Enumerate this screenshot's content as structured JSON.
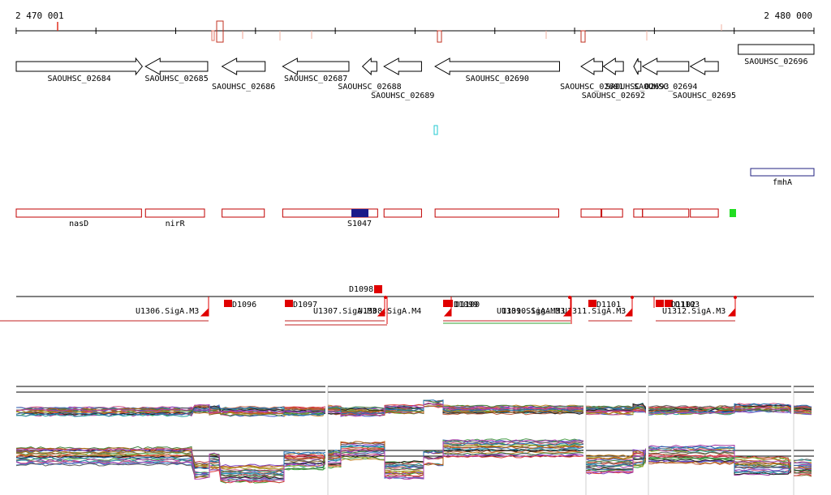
{
  "ruler": {
    "start_label": "2 470 001",
    "end_label": "2 480 000",
    "start": 2470001,
    "end": 2480000
  },
  "genes": [
    {
      "label": "SAOUHSC_02684",
      "strand": "+",
      "from": 2470001,
      "to": 2471581
    },
    {
      "label": "SAOUHSC_02685",
      "strand": "-",
      "from": 2471621,
      "to": 2472401
    },
    {
      "label": "SAOUHSC_02686",
      "strand": "-",
      "from": 2472581,
      "to": 2473121
    },
    {
      "label": "SAOUHSC_02687",
      "strand": "-",
      "from": 2473341,
      "to": 2474171
    },
    {
      "label": "SAOUHSC_02688",
      "strand": "-",
      "from": 2474341,
      "to": 2474521
    },
    {
      "label": "SAOUHSC_02689",
      "strand": "-",
      "from": 2474611,
      "to": 2475081
    },
    {
      "label": "SAOUHSC_02690",
      "strand": "-",
      "from": 2475251,
      "to": 2476811
    },
    {
      "label": "SAOUHSC_02691",
      "strand": "-",
      "from": 2477081,
      "to": 2477351
    },
    {
      "label": "SAOUHSC_02692",
      "strand": "-",
      "from": 2477361,
      "to": 2477611
    },
    {
      "label": "SAOUHSC_02693",
      "strand": "-",
      "from": 2477741,
      "to": 2477831
    },
    {
      "label": "SAOUHSC_02694",
      "strand": "-",
      "from": 2477851,
      "to": 2478431
    },
    {
      "label": "SAOUHSC_02695",
      "strand": "-",
      "from": 2478451,
      "to": 2478801
    },
    {
      "label": "SAOUHSC_02696",
      "strand": "+",
      "from": 2479051,
      "to": 2480000
    }
  ],
  "other_features": [
    {
      "label": "fmhA",
      "from": 2479051,
      "to": 2480000
    }
  ],
  "operons": [
    {
      "label": "nasD",
      "from": 2470001,
      "to": 2471571
    },
    {
      "label": "nirR",
      "from": 2471621,
      "to": 2472361
    },
    {
      "label": "",
      "from": 2472581,
      "to": 2473111
    },
    {
      "label": "",
      "from": 2473341,
      "to": 2474531
    },
    {
      "label": "",
      "from": 2474611,
      "to": 2475081
    },
    {
      "label": "",
      "from": 2475251,
      "to": 2476801
    },
    {
      "label": "",
      "from": 2477081,
      "to": 2477331
    },
    {
      "label": "",
      "from": 2477341,
      "to": 2477601
    },
    {
      "label": "",
      "from": 2477741,
      "to": 2477851
    },
    {
      "label": "",
      "from": 2477851,
      "to": 2478431
    },
    {
      "label": "",
      "from": 2478451,
      "to": 2478801
    }
  ],
  "srna": {
    "label": "S1047",
    "from": 2474141,
    "to": 2474361
  },
  "green_marker": {
    "from": 2478801,
    "to": 2478881
  },
  "transcription_units": [
    {
      "label": "D1096"
    },
    {
      "label": "D1097"
    },
    {
      "label": "D1098"
    },
    {
      "label": "D1099"
    },
    {
      "label": "D1100"
    },
    {
      "label": "D1101"
    },
    {
      "label": "D1102"
    },
    {
      "label": "D1103"
    }
  ],
  "promoters": [
    {
      "label": "U1306.SigA.M3"
    },
    {
      "label": "U1307.SigA.M3"
    },
    {
      "label": "U1308.SigA.M4"
    },
    {
      "label": "U1309.SigA.M3"
    },
    {
      "label": "U1310.SigA.M3"
    },
    {
      "label": "U1311.SigA.M3"
    },
    {
      "label": "U1312.SigA.M3"
    }
  ]
}
